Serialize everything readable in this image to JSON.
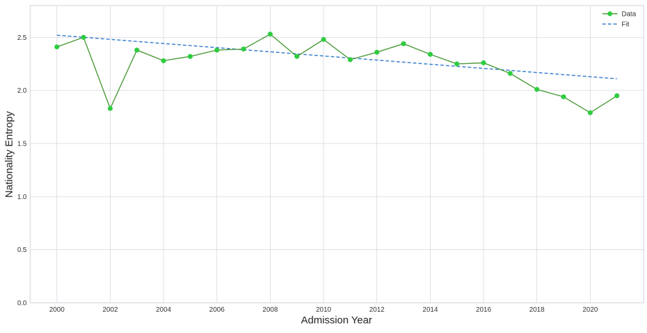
{
  "chart_data": {
    "type": "line",
    "title": "",
    "xlabel": "Admission Year",
    "ylabel": "Nationality Entropy",
    "xlim": [
      1999,
      2022
    ],
    "ylim": [
      0.0,
      2.8
    ],
    "x_ticks": [
      "2000",
      "2002",
      "2004",
      "2006",
      "2008",
      "2010",
      "2012",
      "2014",
      "2016",
      "2018",
      "2020"
    ],
    "y_ticks": [
      "0.0",
      "0.5",
      "1.0",
      "1.5",
      "2.0",
      "2.5"
    ],
    "grid": true,
    "legend_position": "top-right",
    "series": [
      {
        "name": "Data",
        "style": "line-with-markers",
        "color": "#2ecc40",
        "line_color": "#4a9a3a",
        "x": [
          2000,
          2001,
          2002,
          2003,
          2004,
          2005,
          2006,
          2007,
          2008,
          2009,
          2010,
          2011,
          2012,
          2013,
          2014,
          2015,
          2016,
          2017,
          2018,
          2019,
          2020,
          2021
        ],
        "values": [
          2.41,
          2.5,
          1.83,
          2.38,
          2.28,
          2.32,
          2.38,
          2.39,
          2.53,
          2.32,
          2.48,
          2.29,
          2.36,
          2.44,
          2.34,
          2.25,
          2.26,
          2.16,
          2.01,
          1.94,
          1.79,
          1.95
        ]
      },
      {
        "name": "Fit",
        "style": "dashed-line",
        "color": "#3b7fd0",
        "x": [
          2000,
          2021
        ],
        "values": [
          2.52,
          2.11
        ]
      }
    ]
  }
}
